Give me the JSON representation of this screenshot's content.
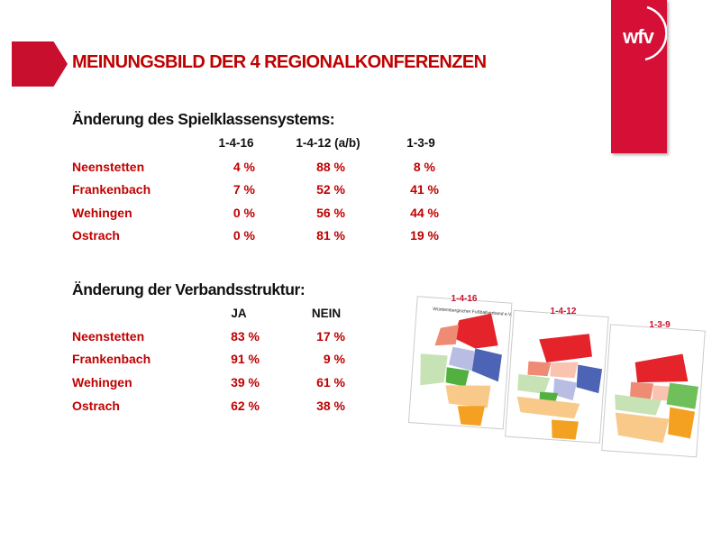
{
  "slide": {
    "title": "MEINUNGSBILD DER 4 REGIONALKONFERENZEN",
    "logo_text": "wfv",
    "colors": {
      "accent": "#c00000",
      "logo": "#d50f35"
    }
  },
  "table1": {
    "heading": "Änderung des Spielklassensystems:",
    "columns": [
      "1-4-16",
      "1-4-12 (a/b)",
      "1-3-9"
    ],
    "rows": [
      {
        "label": "Neenstetten",
        "values": [
          "4 %",
          "88 %",
          "8 %"
        ]
      },
      {
        "label": "Frankenbach",
        "values": [
          "7 %",
          "52 %",
          "41 %"
        ]
      },
      {
        "label": "Wehingen",
        "values": [
          "0 %",
          "56 %",
          "44 %"
        ]
      },
      {
        "label": "Ostrach",
        "values": [
          "0 %",
          "81 %",
          "19 %"
        ]
      }
    ]
  },
  "table2": {
    "heading": "Änderung der Verbandsstruktur:",
    "columns": [
      "JA",
      "NEIN"
    ],
    "rows": [
      {
        "label": "Neenstetten",
        "values": [
          "83 %",
          "17 %"
        ]
      },
      {
        "label": "Frankenbach",
        "values": [
          "91 %",
          "9 %"
        ]
      },
      {
        "label": "Wehingen",
        "values": [
          "39 %",
          "61 %"
        ]
      },
      {
        "label": "Ostrach",
        "values": [
          "62 %",
          "38 %"
        ]
      }
    ]
  },
  "maps": {
    "labels": [
      "1-4-16",
      "1-4-12",
      "1-3-9"
    ],
    "map_title": "Württembergischer Fußballverband e.V."
  }
}
